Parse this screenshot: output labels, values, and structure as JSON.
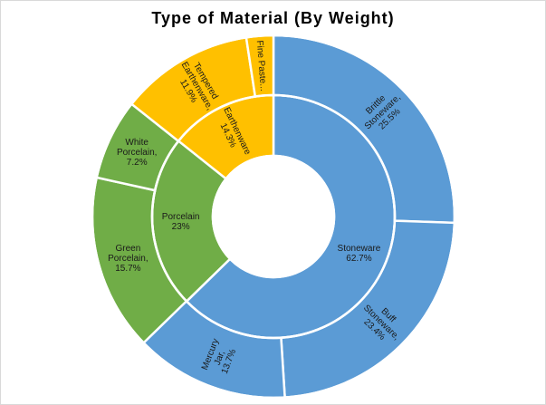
{
  "chart_data": {
    "type": "sunburst",
    "title": "Type of Material  (By Weight)",
    "inner_ring": [
      {
        "name": "Stoneware",
        "value": 62.7,
        "label": "Stoneware 62.7%",
        "color": "#5b9bd5"
      },
      {
        "name": "Porcelain",
        "value": 23.0,
        "label": "Porcelain 23%",
        "color": "#70ad47"
      },
      {
        "name": "Earthenware",
        "value": 14.3,
        "label": "Earthenware 14.3%",
        "color": "#ffc000"
      }
    ],
    "outer_ring": [
      {
        "name": "Brittle Stoneware",
        "parent": "Stoneware",
        "value": 25.5,
        "label": "Brittle Stoneware, 25.5%",
        "color": "#5b9bd5"
      },
      {
        "name": "Buff Stoneware",
        "parent": "Stoneware",
        "value": 23.4,
        "label": "Buff Stoneware, 23.4%",
        "color": "#5b9bd5"
      },
      {
        "name": "Mercury Jar",
        "parent": "Stoneware",
        "value": 13.7,
        "label": "Mercury Jar, 13.7%",
        "color": "#5b9bd5"
      },
      {
        "name": "Green Porcelain",
        "parent": "Porcelain",
        "value": 15.7,
        "label": "Green Porcelain, 15.7%",
        "color": "#70ad47"
      },
      {
        "name": "White Porcelain",
        "parent": "Porcelain",
        "value": 7.2,
        "label": "White Porcelain, 7.2%",
        "color": "#70ad47"
      },
      {
        "name": "Tempered Earthenware",
        "parent": "Earthenware",
        "value": 11.9,
        "label": "Tempered Earthenware, 11.9%",
        "color": "#ffc000"
      },
      {
        "name": "Fine Paste Earthenware",
        "parent": "Earthenware",
        "value": 2.4,
        "label": "Fine Paste...",
        "color": "#ffc000"
      }
    ]
  }
}
